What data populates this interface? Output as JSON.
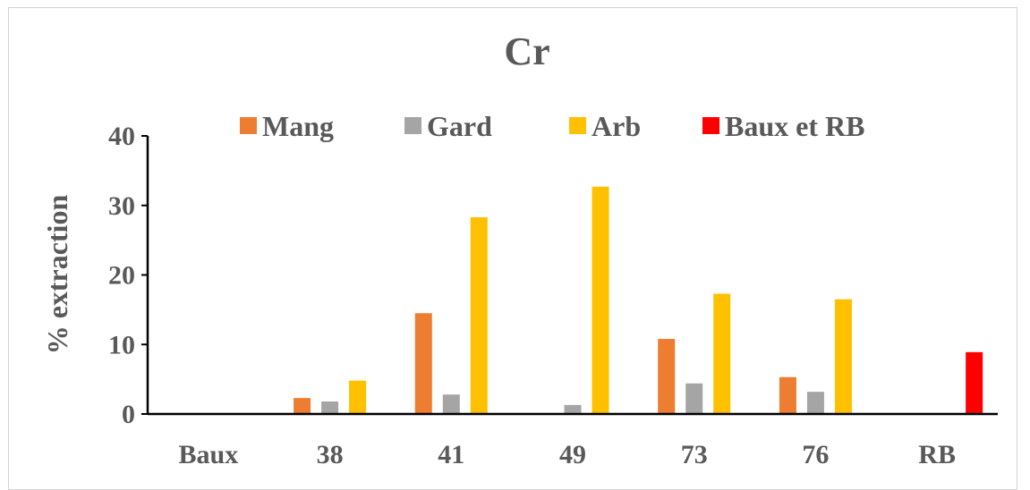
{
  "chart_data": {
    "type": "bar",
    "title": "Cr",
    "xlabel": "",
    "ylabel": "% extraction",
    "ylim": [
      0,
      40
    ],
    "yticks": [
      "0",
      "10",
      "20",
      "30",
      "40"
    ],
    "categories": [
      "Baux",
      "38",
      "41",
      "49",
      "73",
      "76",
      "RB"
    ],
    "legend_position": "top",
    "series": [
      {
        "name": "Mang",
        "color": "#ED7D31",
        "values": [
          null,
          2.3,
          14.5,
          null,
          10.8,
          5.3,
          null
        ]
      },
      {
        "name": "Gard",
        "color": "#A5A5A5",
        "values": [
          null,
          1.8,
          2.8,
          1.3,
          4.4,
          3.2,
          null
        ]
      },
      {
        "name": "Arb",
        "color": "#FFC000",
        "values": [
          null,
          4.8,
          28.3,
          32.7,
          17.3,
          16.5,
          null
        ]
      },
      {
        "name": "Baux et RB",
        "color": "#FF0000",
        "values": [
          null,
          null,
          null,
          null,
          null,
          null,
          8.9
        ]
      }
    ],
    "grid": false
  }
}
